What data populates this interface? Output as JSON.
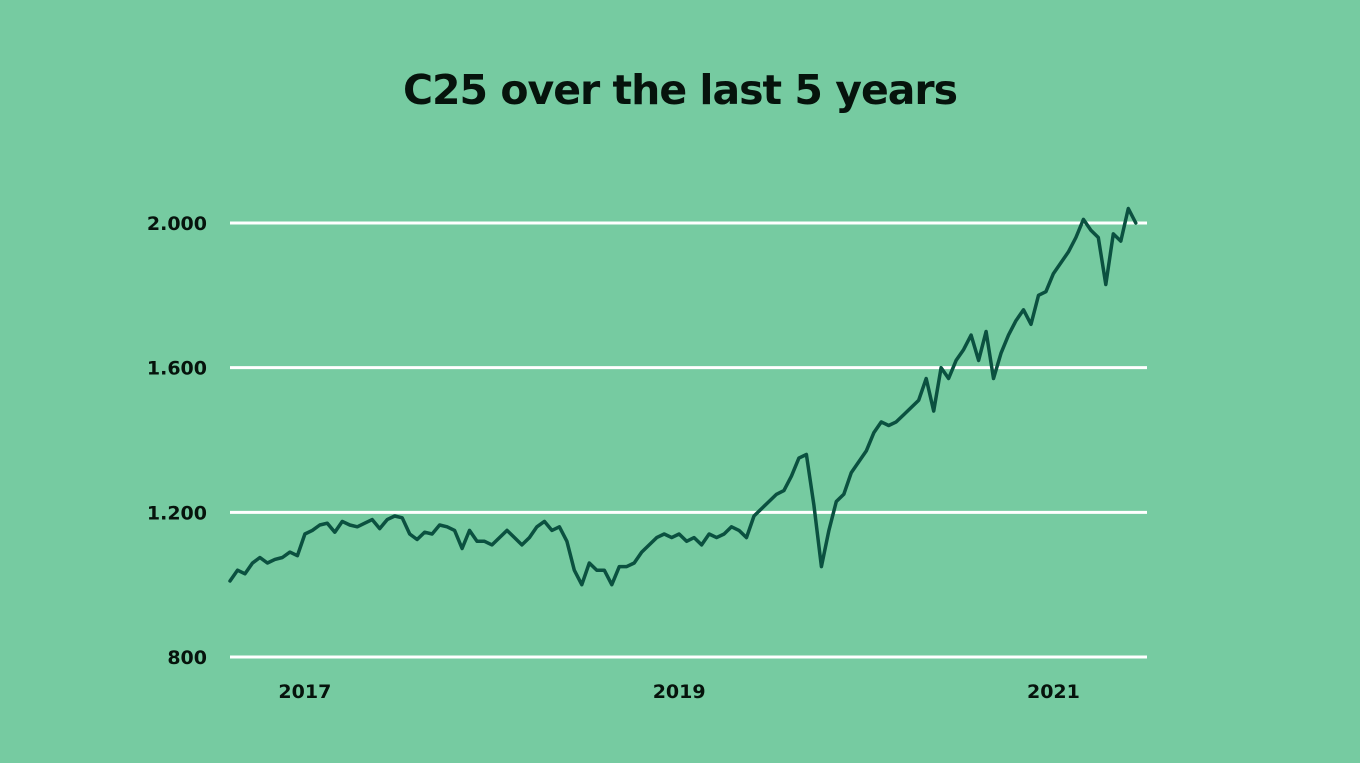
{
  "chart_data": {
    "type": "line",
    "title": "C25 over the last 5 years",
    "xlabel": "",
    "ylabel": "",
    "ylim": [
      800,
      2000
    ],
    "yticks": [
      800,
      1200,
      1600,
      2000
    ],
    "ytick_labels": [
      "800",
      "1.200",
      "1.600",
      "2.000"
    ],
    "xlim": [
      2016.6,
      2021.5
    ],
    "xticks": [
      2017,
      2019,
      2021
    ],
    "xtick_labels": [
      "2017",
      "2019",
      "2021"
    ],
    "grid": true,
    "legend": "none",
    "colors": {
      "background": "#76cba1",
      "line": "#0b5140",
      "grid": "#ffffff",
      "text": "#06130c"
    },
    "series": [
      {
        "x": [
          2016.6,
          2016.64,
          2016.68,
          2016.72,
          2016.76,
          2016.8,
          2016.84,
          2016.88,
          2016.92,
          2016.96,
          2017.0,
          2017.04,
          2017.08,
          2017.12,
          2017.16,
          2017.2,
          2017.24,
          2017.28,
          2017.32,
          2017.36,
          2017.4,
          2017.44,
          2017.48,
          2017.52,
          2017.56,
          2017.6,
          2017.64,
          2017.68,
          2017.72,
          2017.76,
          2017.8,
          2017.84,
          2017.88,
          2017.92,
          2017.96,
          2018.0,
          2018.04,
          2018.08,
          2018.12,
          2018.16,
          2018.2,
          2018.24,
          2018.28,
          2018.32,
          2018.36,
          2018.4,
          2018.44,
          2018.48,
          2018.52,
          2018.56,
          2018.6,
          2018.64,
          2018.68,
          2018.72,
          2018.76,
          2018.8,
          2018.84,
          2018.88,
          2018.92,
          2018.96,
          2019.0,
          2019.04,
          2019.08,
          2019.12,
          2019.16,
          2019.2,
          2019.24,
          2019.28,
          2019.32,
          2019.36,
          2019.4,
          2019.44,
          2019.48,
          2019.52,
          2019.56,
          2019.6,
          2019.64,
          2019.68,
          2019.72,
          2019.76,
          2019.8,
          2019.84,
          2019.88,
          2019.92,
          2019.96,
          2020.0,
          2020.04,
          2020.08,
          2020.12,
          2020.16,
          2020.2,
          2020.24,
          2020.28,
          2020.32,
          2020.36,
          2020.4,
          2020.44,
          2020.48,
          2020.52,
          2020.56,
          2020.6,
          2020.64,
          2020.68,
          2020.72,
          2020.76,
          2020.8,
          2020.84,
          2020.88,
          2020.92,
          2020.96,
          2021.0,
          2021.04,
          2021.08,
          2021.12,
          2021.16,
          2021.2,
          2021.24,
          2021.28,
          2021.32,
          2021.36,
          2021.4,
          2021.44
        ],
        "y": [
          1010,
          1040,
          1030,
          1060,
          1075,
          1060,
          1070,
          1075,
          1090,
          1080,
          1140,
          1150,
          1165,
          1170,
          1145,
          1175,
          1165,
          1160,
          1170,
          1180,
          1155,
          1180,
          1190,
          1185,
          1140,
          1125,
          1145,
          1140,
          1165,
          1160,
          1150,
          1100,
          1150,
          1120,
          1120,
          1110,
          1130,
          1150,
          1130,
          1110,
          1130,
          1160,
          1175,
          1150,
          1160,
          1120,
          1040,
          1000,
          1060,
          1040,
          1040,
          1000,
          1050,
          1050,
          1060,
          1090,
          1110,
          1130,
          1140,
          1130,
          1140,
          1120,
          1130,
          1110,
          1140,
          1130,
          1140,
          1160,
          1150,
          1130,
          1190,
          1210,
          1230,
          1250,
          1260,
          1300,
          1350,
          1360,
          1220,
          1050,
          1150,
          1230,
          1250,
          1310,
          1340,
          1370,
          1420,
          1450,
          1440,
          1450,
          1470,
          1490,
          1510,
          1570,
          1480,
          1600,
          1570,
          1620,
          1650,
          1690,
          1620,
          1700,
          1570,
          1640,
          1690,
          1730,
          1760,
          1720,
          1800,
          1810,
          1860,
          1890,
          1920,
          1960,
          2010,
          1980,
          1960,
          1830,
          1970,
          1950,
          2040,
          2000
        ]
      }
    ]
  }
}
